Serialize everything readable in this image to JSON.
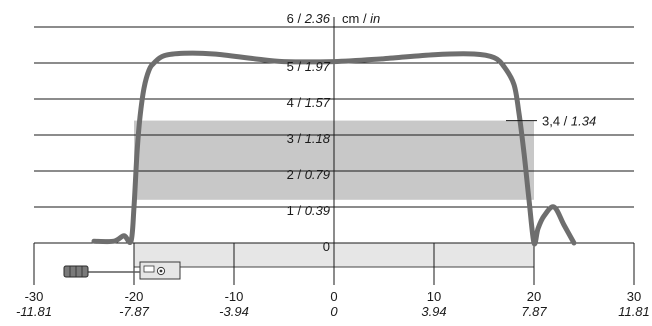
{
  "chart_data": {
    "type": "line",
    "title": "",
    "unit_label": {
      "primary": "cm",
      "secondary": "in"
    },
    "y_ticks": [
      {
        "cm": "0",
        "in": ""
      },
      {
        "cm": "1",
        "in": "0.39"
      },
      {
        "cm": "2",
        "in": "0.79"
      },
      {
        "cm": "3",
        "in": "1.18"
      },
      {
        "cm": "4",
        "in": "1.57"
      },
      {
        "cm": "5",
        "in": "1.97"
      },
      {
        "cm": "6",
        "in": "2.36"
      }
    ],
    "x_ticks": [
      {
        "cm": "-30",
        "in": "-11.81"
      },
      {
        "cm": "-20",
        "in": "-7.87"
      },
      {
        "cm": "-10",
        "in": "-3.94"
      },
      {
        "cm": "0",
        "in": "0"
      },
      {
        "cm": "10",
        "in": "3.94"
      },
      {
        "cm": "20",
        "in": "7.87"
      },
      {
        "cm": "30",
        "in": "11.81"
      }
    ],
    "band": {
      "from_cm": 1.2,
      "to_cm": 3.4
    },
    "annotation": {
      "cm": "3,4",
      "in": "1.34",
      "y_cm": 3.4
    },
    "xlim": [
      -30,
      30
    ],
    "ylim": [
      0,
      6
    ],
    "series": [
      {
        "x": [
          -24,
          -22,
          -21,
          -20.3,
          -20,
          -19.7,
          -19.4,
          -19,
          -18.5,
          -18,
          -17,
          -15,
          -12,
          -8,
          -5,
          0,
          5,
          10,
          14,
          16,
          17,
          18,
          18.5,
          19,
          19.5,
          20,
          20.4,
          21,
          22,
          23,
          24
        ],
        "y": [
          0.05,
          0.05,
          0.2,
          0.05,
          1.0,
          2.5,
          3.5,
          4.3,
          4.8,
          5.0,
          5.2,
          5.27,
          5.25,
          5.12,
          5.04,
          5.04,
          5.12,
          5.23,
          5.25,
          5.15,
          4.9,
          4.4,
          3.6,
          2.5,
          1.2,
          0.0,
          0.4,
          0.75,
          1.0,
          0.5,
          0.0
        ]
      }
    ]
  }
}
